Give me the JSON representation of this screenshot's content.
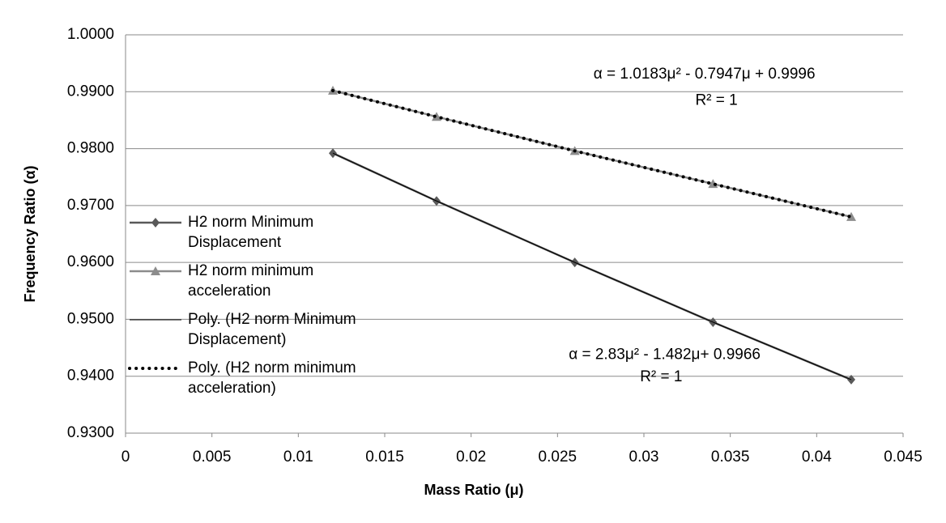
{
  "chart_data": {
    "type": "line",
    "x_label": "Mass Ratio (μ)",
    "y_label": "Frequency Ratio (α)",
    "x": [
      0.012,
      0.018,
      0.026,
      0.034,
      0.042
    ],
    "series": [
      {
        "name": "H2 norm Minimum Displacement",
        "color": "#595959",
        "marker": "diamond",
        "line": "solid",
        "width": 2.5,
        "values": [
          0.9792,
          0.9708,
          0.96,
          0.9495,
          0.9394
        ]
      },
      {
        "name": "H2 norm minimum acceleration",
        "color": "#8c8c8c",
        "marker": "triangle",
        "line": "solid",
        "width": 2.5,
        "values": [
          0.9902,
          0.9856,
          0.9796,
          0.9738,
          0.968
        ]
      },
      {
        "name": "Poly. (H2 norm Minimum Displacement)",
        "color": "#000000",
        "marker": "none",
        "line": "solid",
        "width": 1,
        "values": [
          0.9792,
          0.9708,
          0.96,
          0.9495,
          0.9394
        ]
      },
      {
        "name": "Poly. (H2 norm minimum acceleration)",
        "color": "#000000",
        "marker": "none",
        "line": "dotted",
        "width": 4,
        "values": [
          0.9902,
          0.9856,
          0.9796,
          0.9738,
          0.968
        ]
      }
    ],
    "annotations": [
      {
        "text": "α = 1.0183μ² - 0.7947μ + 0.9996",
        "x": 0.0335,
        "y": 0.993
      },
      {
        "text": "R² = 1",
        "x": 0.0342,
        "y": 0.9884
      },
      {
        "text": "α = 2.83μ² - 1.482μ+ 0.9966",
        "x": 0.0312,
        "y": 0.9437
      },
      {
        "text": "R² = 1",
        "x": 0.031,
        "y": 0.9398
      }
    ],
    "xlim": [
      0,
      0.045
    ],
    "xticks": [
      0,
      0.005,
      0.01,
      0.015,
      0.02,
      0.025,
      0.03,
      0.035,
      0.04,
      0.045
    ],
    "ylim": [
      0.93,
      1.0
    ],
    "yticks": [
      {
        "value": 0.93,
        "label": "0.9300"
      },
      {
        "value": 0.94,
        "label": "0.9400"
      },
      {
        "value": 0.95,
        "label": "0.9500"
      },
      {
        "value": 0.96,
        "label": "0.9600"
      },
      {
        "value": 0.97,
        "label": "0.9700"
      },
      {
        "value": 0.98,
        "label": "0.9800"
      },
      {
        "value": 0.99,
        "label": "0.9900"
      },
      {
        "value": 1.0,
        "label": "1.0000"
      }
    ],
    "grid": true
  }
}
